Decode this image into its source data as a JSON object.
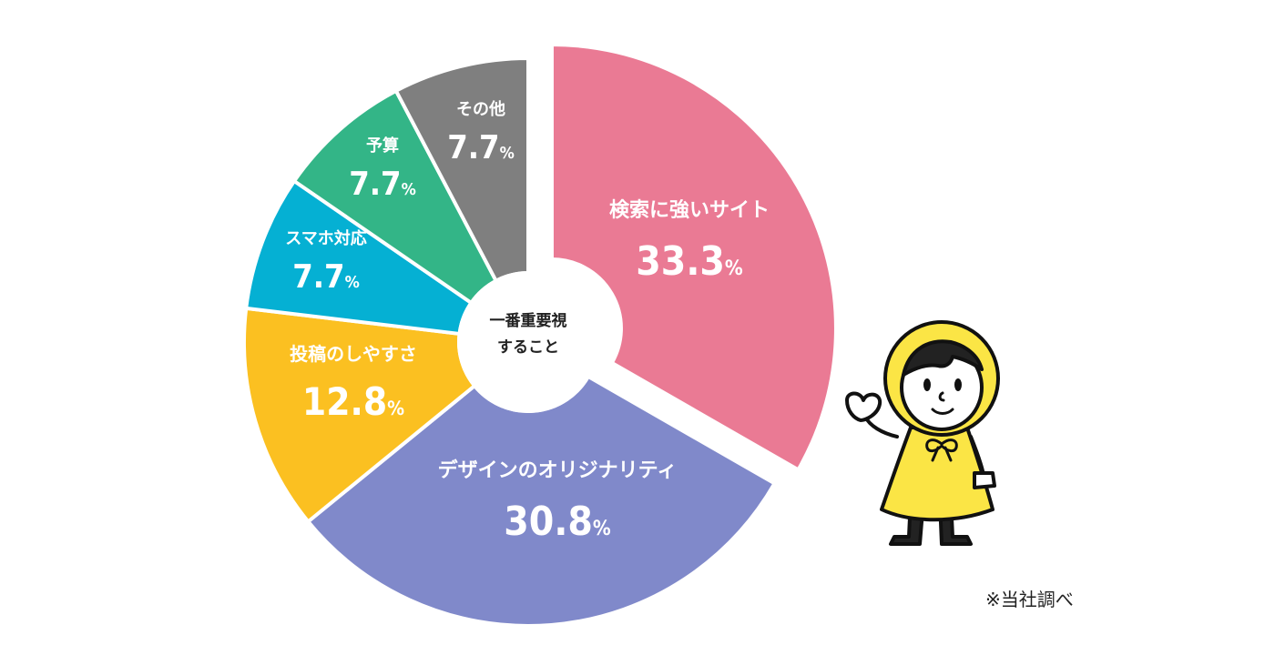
{
  "chart_data": {
    "type": "pie",
    "center_label": [
      "一番重要視",
      "すること"
    ],
    "slices": [
      {
        "label": "検索に強いサイト",
        "value": 33.3,
        "color": "#ea7a94",
        "exploded": true
      },
      {
        "label": "デザインのオリジナリティ",
        "value": 30.8,
        "color": "#8089ca"
      },
      {
        "label": "投稿のしやすさ",
        "value": 12.8,
        "color": "#fbc021"
      },
      {
        "label": "スマホ対応",
        "value": 7.7,
        "color": "#05b0d3"
      },
      {
        "label": "予算",
        "value": 7.7,
        "color": "#33b587"
      },
      {
        "label": "その他",
        "value": 7.7,
        "color": "#7f7f7f"
      }
    ],
    "value_suffix": "%"
  },
  "note": "※当社調べ",
  "mascot": {
    "icon": "raincoat-child-mascot-icon",
    "coat_color": "#fbe545"
  }
}
